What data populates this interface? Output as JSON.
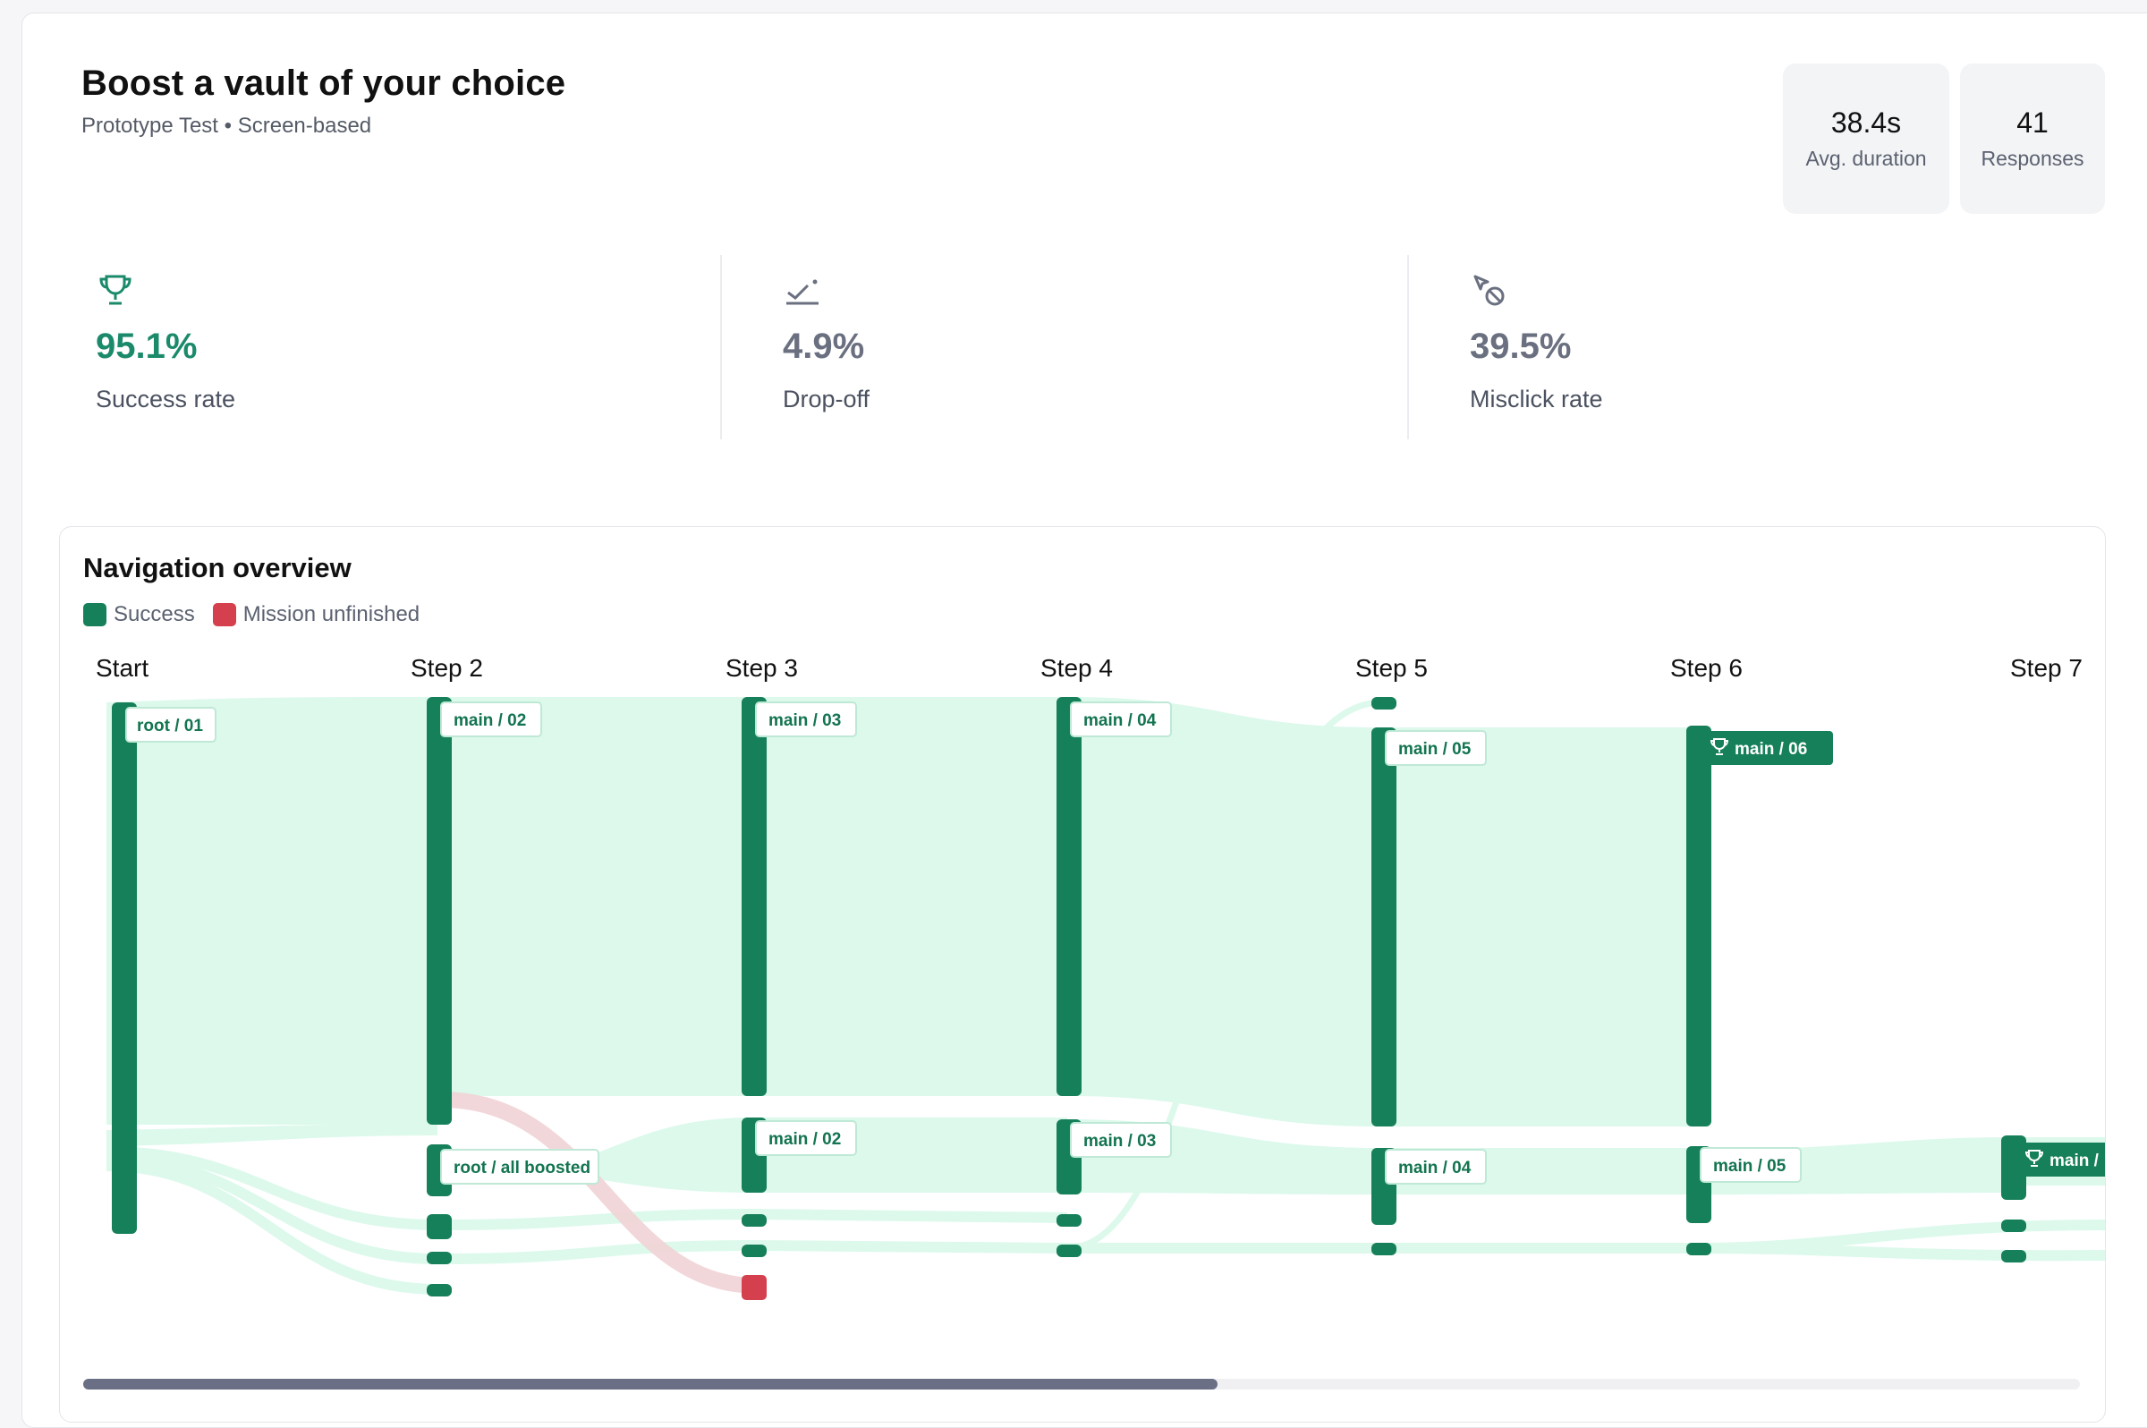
{
  "header": {
    "title": "Boost a vault of your choice",
    "subtitle": "Prototype Test • Screen-based"
  },
  "stats": [
    {
      "value": "38.4s",
      "label": "Avg. duration"
    },
    {
      "value": "41",
      "label": "Responses"
    }
  ],
  "metrics": [
    {
      "icon": "trophy-icon",
      "value": "95.1%",
      "label": "Success rate",
      "color": "#1b8a6b"
    },
    {
      "icon": "drop-off-icon",
      "value": "4.9%",
      "label": "Drop-off",
      "color": "#6b7080"
    },
    {
      "icon": "misclick-icon",
      "value": "39.5%",
      "label": "Misclick rate",
      "color": "#6b7080"
    }
  ],
  "navigation": {
    "title": "Navigation overview",
    "legend": [
      {
        "label": "Success",
        "color": "#16805a"
      },
      {
        "label": "Mission unfinished",
        "color": "#d5404e"
      }
    ],
    "steps": [
      "Start",
      "Step 2",
      "Step 3",
      "Step 4",
      "Step 5",
      "Step 6",
      "Step 7"
    ],
    "nodes": [
      {
        "label": "root / 01",
        "step": 0,
        "success": false
      },
      {
        "label": "main / 02",
        "step": 1,
        "success": false
      },
      {
        "label": "root / all boosted",
        "step": 1,
        "success": false
      },
      {
        "label": "main / 03",
        "step": 2,
        "success": false
      },
      {
        "label": "main / 02",
        "step": 2,
        "success": false
      },
      {
        "label": "main / 04",
        "step": 3,
        "success": false
      },
      {
        "label": "main / 03",
        "step": 3,
        "success": false
      },
      {
        "label": "main / 05",
        "step": 4,
        "success": false
      },
      {
        "label": "main / 04",
        "step": 4,
        "success": false
      },
      {
        "label": "main / 06",
        "step": 5,
        "success": true
      },
      {
        "label": "main / 05",
        "step": 5,
        "success": false
      },
      {
        "label": "main /",
        "step": 6,
        "success": true
      }
    ]
  },
  "colors": {
    "accent": "#16805a",
    "flow": "#dcf9ec",
    "unfinished": "#d5404e"
  }
}
